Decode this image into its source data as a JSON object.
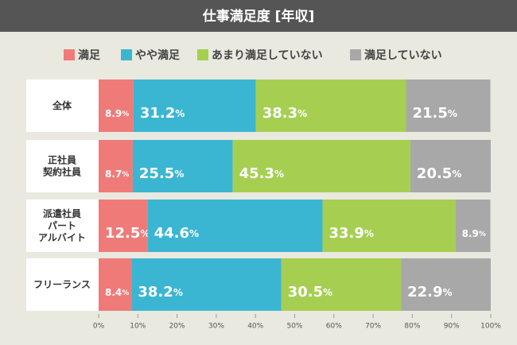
{
  "chart_data": {
    "type": "stacked-bar-horizontal",
    "title": "仕事満足度 [年収]",
    "categories": [
      "全体",
      "正社員\n契約社員",
      "派遣社員\nパート\nアルバイト",
      "フリーランス"
    ],
    "series": [
      {
        "name": "満足",
        "color": "#ef7b78",
        "values": [
          8.9,
          8.7,
          12.5,
          8.4
        ],
        "value_labels": [
          "8.9%",
          "8.7%",
          "12.5%",
          "8.4%"
        ]
      },
      {
        "name": "やや満足",
        "color": "#3bb6d2",
        "values": [
          31.2,
          25.5,
          44.6,
          38.2
        ],
        "value_labels": [
          "31.2%",
          "25.5%",
          "44.6%",
          "38.2%"
        ]
      },
      {
        "name": "あまり満足していない",
        "color": "#a6cf52",
        "values": [
          38.3,
          45.3,
          33.9,
          30.5
        ],
        "value_labels": [
          "38.3%",
          "45.3%",
          "33.9%",
          "30.5%"
        ]
      },
      {
        "name": "満足していない",
        "color": "#a8a8a8",
        "values": [
          21.5,
          20.5,
          8.9,
          22.9
        ],
        "value_labels": [
          "21.5%",
          "20.5%",
          "8.9%",
          "22.9%"
        ]
      }
    ],
    "xlim": [
      0,
      100
    ],
    "xticks": [
      {
        "value": 0,
        "label": "0%"
      },
      {
        "value": 10,
        "label": "10%"
      },
      {
        "value": 20,
        "label": "20%"
      },
      {
        "value": 30,
        "label": "30%"
      },
      {
        "value": 40,
        "label": "40%"
      },
      {
        "value": 50,
        "label": "50%"
      },
      {
        "value": 60,
        "label": "60%"
      },
      {
        "value": 70,
        "label": "70%"
      },
      {
        "value": 80,
        "label": "80%"
      },
      {
        "value": 90,
        "label": "90%"
      },
      {
        "value": 100,
        "label": "100%"
      }
    ]
  }
}
